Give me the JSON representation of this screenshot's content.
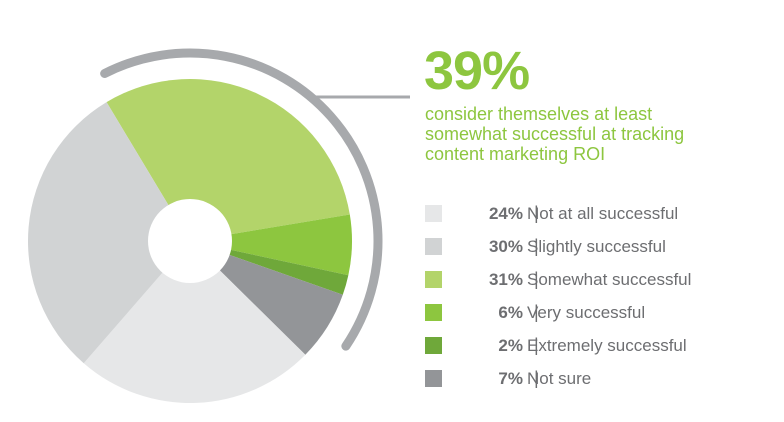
{
  "highlight": {
    "value": "39%",
    "caption_lines": [
      "consider themselves at least",
      "somewhat successful at tracking",
      "content marketing ROI"
    ]
  },
  "colors": {
    "light_gray": "#e6e7e8",
    "mid_gray": "#d1d3d4",
    "light_green": "#b3d46a",
    "green": "#8dc63f",
    "dark_green": "#6fa83a",
    "dark_gray": "#939598",
    "arc_gray": "#a7a9ac",
    "text_green": "#8dc63f",
    "text_gray": "#6d6e71"
  },
  "chart_data": {
    "type": "pie",
    "title": "",
    "series": [
      {
        "pct_label": "24%",
        "value": 24,
        "label": "Not at all successful",
        "color": "#e6e7e8"
      },
      {
        "pct_label": "30%",
        "value": 30,
        "label": "Slightly successful",
        "color": "#d1d3d4"
      },
      {
        "pct_label": "31%",
        "value": 31,
        "label": "Somewhat successful",
        "color": "#b3d46a"
      },
      {
        "pct_label": "6%",
        "value": 6,
        "label": "Very successful",
        "color": "#8dc63f"
      },
      {
        "pct_label": "2%",
        "value": 2,
        "label": "Extremely successful",
        "color": "#6fa83a"
      },
      {
        "pct_label": "7%",
        "value": 7,
        "label": "Not sure",
        "color": "#939598"
      }
    ],
    "legend_position": "right",
    "separator": "|"
  }
}
